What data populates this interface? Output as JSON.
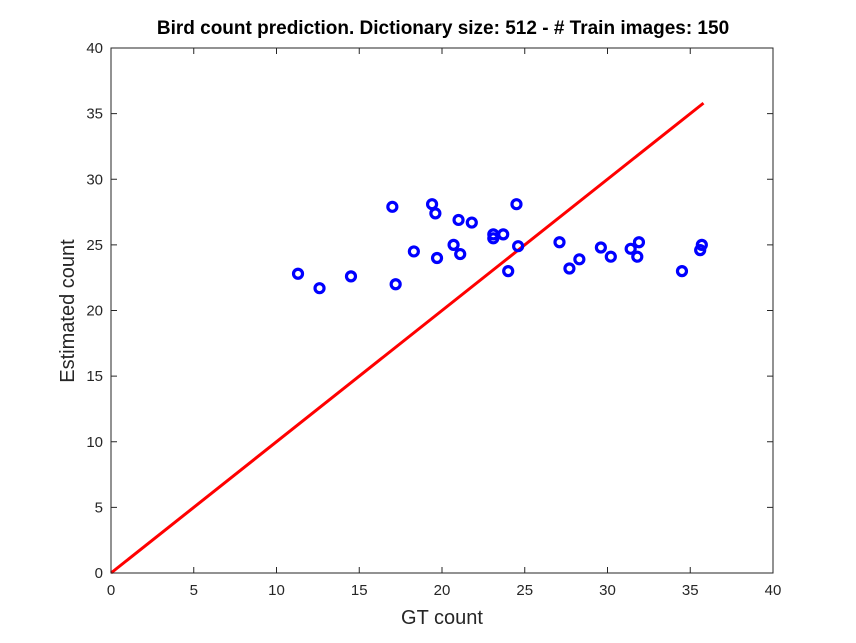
{
  "chart_data": {
    "type": "scatter",
    "title": "Bird count prediction. Dictionary size: 512 - # Train images: 150",
    "xlabel": "GT count",
    "ylabel": "Estimated count",
    "xlim": [
      0,
      40
    ],
    "ylim": [
      0,
      40
    ],
    "xticks": [
      0,
      5,
      10,
      15,
      20,
      25,
      30,
      35,
      40
    ],
    "yticks": [
      0,
      5,
      10,
      15,
      20,
      25,
      30,
      35,
      40
    ],
    "grid": false,
    "colors": {
      "points": "#0000ff",
      "reference_line": "#ff0000",
      "axes": "#262626"
    },
    "reference_line": {
      "x": [
        0,
        35.8
      ],
      "y": [
        0,
        35.8
      ]
    },
    "series": [
      {
        "x": [
          11.3,
          12.6,
          14.5,
          17.0,
          17.2,
          18.3,
          19.4,
          19.6,
          19.7,
          20.7,
          21.0,
          21.1,
          21.8,
          23.1,
          23.1,
          23.7,
          24.0,
          24.5,
          24.6,
          27.1,
          27.7,
          28.3,
          29.6,
          30.2,
          31.4,
          31.8,
          31.9,
          34.5,
          35.6,
          35.7
        ],
        "y": [
          22.8,
          21.7,
          22.6,
          27.9,
          22.0,
          24.5,
          28.1,
          27.4,
          24.0,
          25.0,
          26.9,
          24.3,
          26.7,
          25.8,
          25.5,
          25.8,
          23.0,
          28.1,
          24.9,
          25.2,
          23.2,
          23.9,
          24.8,
          24.1,
          24.7,
          24.1,
          25.2,
          23.0,
          24.6,
          25.0
        ]
      }
    ]
  }
}
